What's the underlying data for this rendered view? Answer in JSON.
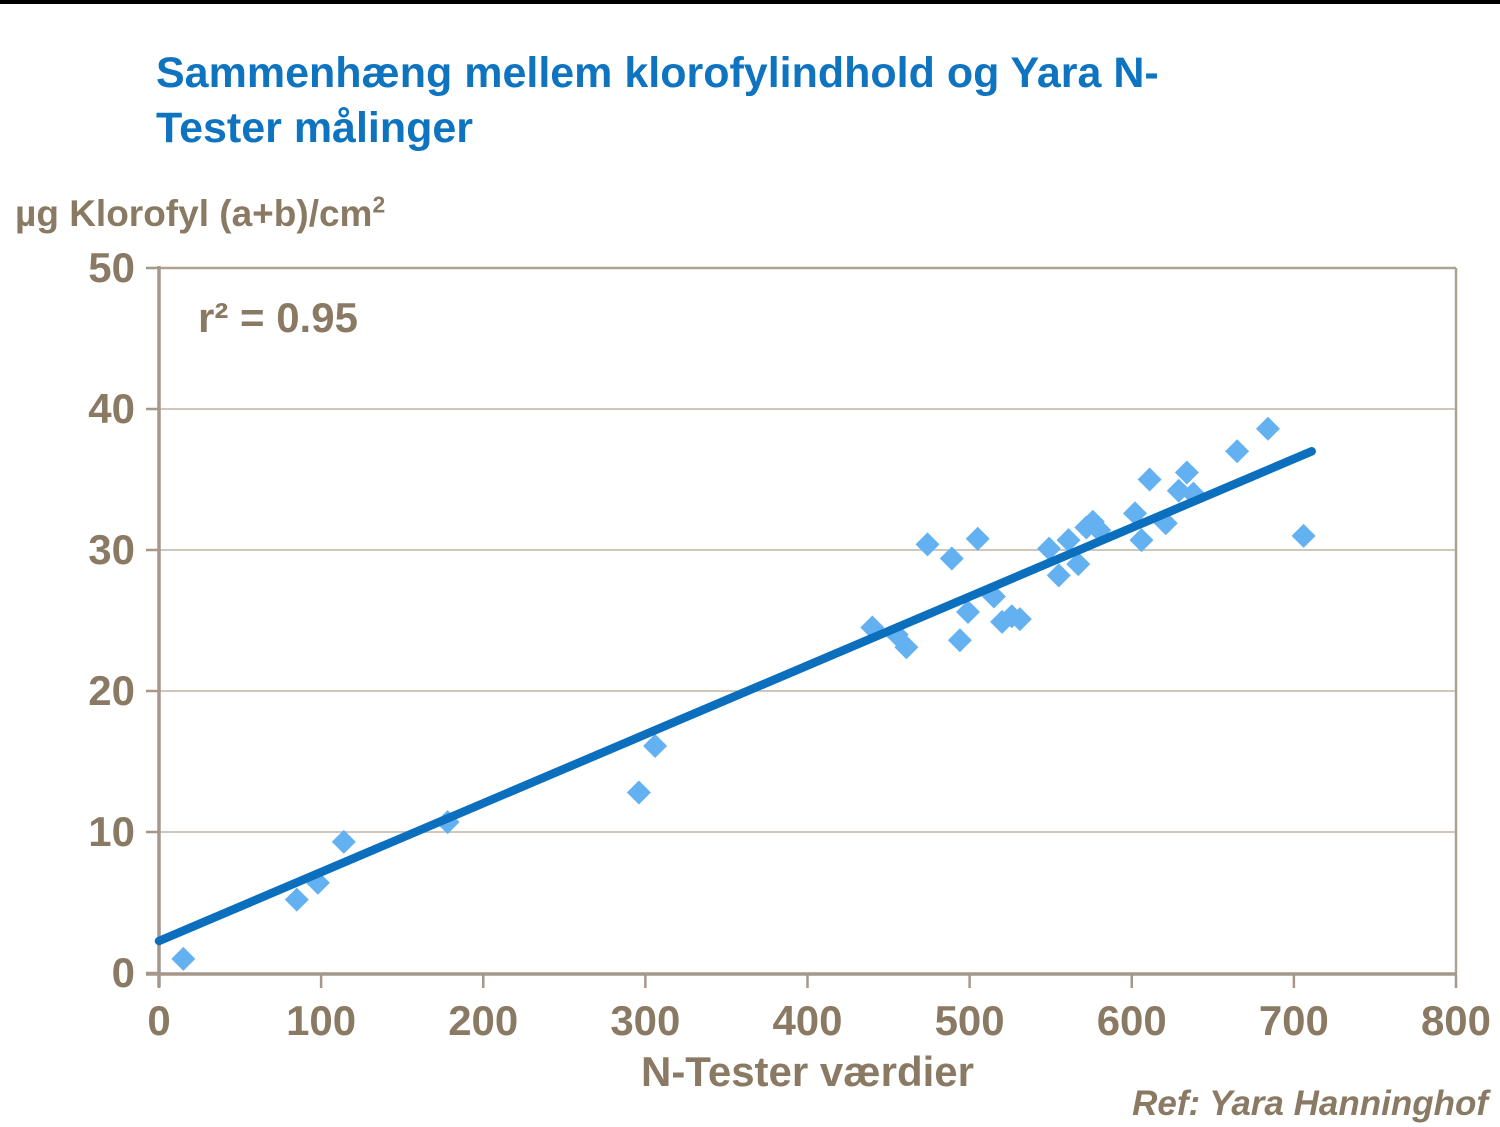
{
  "page": {
    "title_lines": [
      "Sammenhæng mellem klorofylindhold og Yara N-",
      "Tester målinger"
    ],
    "ref_note": "Ref: Yara Hanninghof"
  },
  "chart_data": {
    "type": "scatter",
    "title": "Sammenhæng mellem klorofylindhold og Yara N-Tester målinger",
    "xlabel": "N-Tester værdier",
    "ylabel_base": "µg Klorofyl (a+b)/cm",
    "ylabel_sup": "2",
    "annotation": "r² = 0.95",
    "r_squared": 0.95,
    "ref_note": "Ref: Yara Hanninghof",
    "xlim": [
      0,
      800
    ],
    "ylim": [
      0,
      50
    ],
    "x_ticks": [
      0,
      100,
      200,
      300,
      400,
      500,
      600,
      700,
      800
    ],
    "y_ticks": [
      0,
      10,
      20,
      30,
      40,
      50
    ],
    "grid": "horizontal-only",
    "legend": "none",
    "marker": "diamond",
    "points": [
      [
        15,
        1.0
      ],
      [
        85,
        5.2
      ],
      [
        98,
        6.4
      ],
      [
        114,
        9.3
      ],
      [
        178,
        10.7
      ],
      [
        296,
        12.8
      ],
      [
        306,
        16.1
      ],
      [
        440,
        24.5
      ],
      [
        455,
        24.0
      ],
      [
        461,
        23.1
      ],
      [
        474,
        30.4
      ],
      [
        489,
        29.4
      ],
      [
        494,
        23.6
      ],
      [
        499,
        25.6
      ],
      [
        505,
        30.8
      ],
      [
        515,
        26.7
      ],
      [
        520,
        24.9
      ],
      [
        526,
        25.3
      ],
      [
        531,
        25.1
      ],
      [
        549,
        30.1
      ],
      [
        555,
        28.2
      ],
      [
        561,
        30.7
      ],
      [
        567,
        29.0
      ],
      [
        572,
        31.6
      ],
      [
        576,
        32.0
      ],
      [
        580,
        31.4
      ],
      [
        602,
        32.6
      ],
      [
        606,
        30.7
      ],
      [
        611,
        35.0
      ],
      [
        621,
        31.9
      ],
      [
        629,
        34.2
      ],
      [
        634,
        35.5
      ],
      [
        638,
        34.0
      ],
      [
        665,
        37.0
      ],
      [
        684,
        38.6
      ],
      [
        706,
        31.0
      ]
    ],
    "trend_line": {
      "x_start": 0,
      "y_start": 2.27,
      "x_end": 711,
      "y_end": 37.0
    },
    "colors": {
      "title": "#0E74C0",
      "marker": "#63B1F0",
      "trend": "#0B6FBE",
      "axis": "#A6978B",
      "border": "#B0A290",
      "grid": "#C9BFB2",
      "text": "#8A7A64",
      "top_line": "#000000"
    }
  }
}
